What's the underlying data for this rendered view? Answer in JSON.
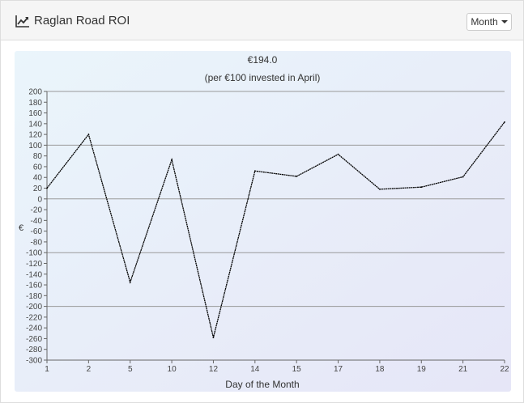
{
  "header": {
    "title": "Raglan Road ROI",
    "icon": "line-chart-icon",
    "period_button": "Month"
  },
  "colors": {
    "line": "#000000",
    "grid": "#999999",
    "background_start": "#eaf5fb",
    "background_end": "#e6e6f7"
  },
  "chart_data": {
    "type": "line",
    "title": "€194.0",
    "subtitle": "(per €100 invested in April)",
    "xlabel": "Day of the Month",
    "ylabel": "€",
    "categories": [
      "1",
      "2",
      "5",
      "10",
      "12",
      "14",
      "15",
      "17",
      "18",
      "19",
      "21",
      "22"
    ],
    "series": [
      {
        "values": [
          20,
          120,
          -155,
          73,
          -258,
          52,
          42,
          83,
          18,
          22,
          41,
          143
        ]
      }
    ],
    "ylim": [
      -300,
      200
    ],
    "ytick_step": 20,
    "grid": true,
    "legend": "none"
  }
}
